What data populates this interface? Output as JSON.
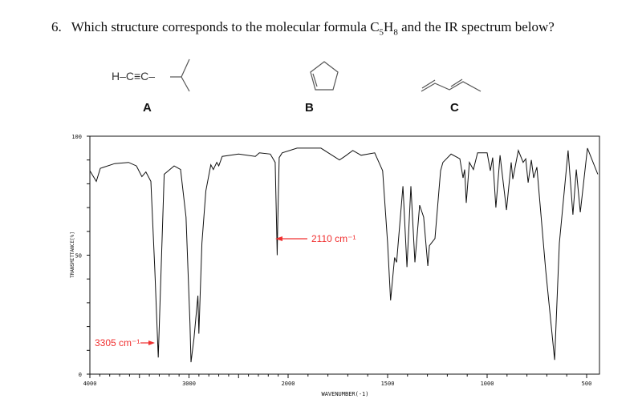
{
  "question": {
    "number": "6.",
    "text_before": "Which structure corresponds to the molecular formula C",
    "sub1": "5",
    "mid": "H",
    "sub2": "8",
    "text_after": " and the IR spectrum below?"
  },
  "structures": [
    {
      "label": "A",
      "formula_text": "H–C≡C–"
    },
    {
      "label": "B"
    },
    {
      "label": "C"
    }
  ],
  "annotations": [
    {
      "text": "3305 cm⁻¹",
      "color": "#f03030"
    },
    {
      "text": "2110 cm⁻¹",
      "color": "#f03030"
    }
  ],
  "chart_data": {
    "type": "line",
    "title": "",
    "xlabel": "WAVENUMBER(-1)",
    "ylabel": "TRANSMITTANCE[%]",
    "xlim": [
      4000,
      440
    ],
    "ylim": [
      0,
      100
    ],
    "x_scale_note_breakpoint": 2000,
    "x_ticks": [
      "4000",
      "3000",
      "2000",
      "1500",
      "1000",
      "500"
    ],
    "y_ticks": [
      "0",
      "50",
      "100"
    ],
    "grid": false,
    "series": [
      {
        "x": [
          4000,
          3935,
          3895,
          3750,
          3610,
          3530,
          3475,
          3435,
          3385,
          3345,
          3310,
          3290,
          3250,
          3150,
          3085,
          3030,
          2990,
          2980,
          2950,
          2910,
          2900,
          2870,
          2830,
          2780,
          2755,
          2720,
          2700,
          2665,
          2500,
          2330,
          2290,
          2180,
          2130,
          2115,
          2110,
          2105,
          2090,
          2060,
          1955,
          1835,
          1742,
          1715,
          1675,
          1633,
          1565,
          1525,
          1500,
          1485,
          1465,
          1455,
          1423,
          1403,
          1383,
          1363,
          1339,
          1319,
          1298,
          1290,
          1262,
          1234,
          1222,
          1181,
          1137,
          1121,
          1113,
          1105,
          1089,
          1069,
          1048,
          1000,
          984,
          972,
          956,
          935,
          903,
          879,
          871,
          843,
          819,
          806,
          794,
          778,
          766,
          750,
          706,
          661,
          637,
          593,
          569,
          552,
          532,
          496,
          444
        ],
        "y": [
          85.5,
          81,
          86.5,
          88.5,
          89,
          87.5,
          83,
          85,
          81,
          44,
          7,
          33,
          84,
          87.5,
          86,
          66,
          21.5,
          5,
          15,
          33,
          17,
          55,
          77,
          88,
          86,
          89,
          87.5,
          91.5,
          92.5,
          91.5,
          93,
          92.5,
          89,
          60,
          50,
          62,
          91,
          93,
          95,
          95,
          90,
          91.5,
          94,
          92,
          93,
          85.5,
          55,
          31,
          49,
          47,
          79,
          45,
          79,
          47,
          71,
          66,
          45.5,
          54,
          57,
          85.5,
          89,
          92.5,
          90.5,
          82.5,
          86,
          72,
          89,
          86,
          93,
          93,
          85.5,
          91,
          70,
          92,
          69,
          89,
          82,
          94,
          89,
          90.5,
          80.5,
          90,
          82.5,
          87,
          44,
          6,
          55,
          94,
          67,
          86,
          68,
          95,
          84
        ]
      }
    ],
    "annotations": [
      "3305 cm⁻¹",
      "2110 cm⁻¹"
    ]
  }
}
